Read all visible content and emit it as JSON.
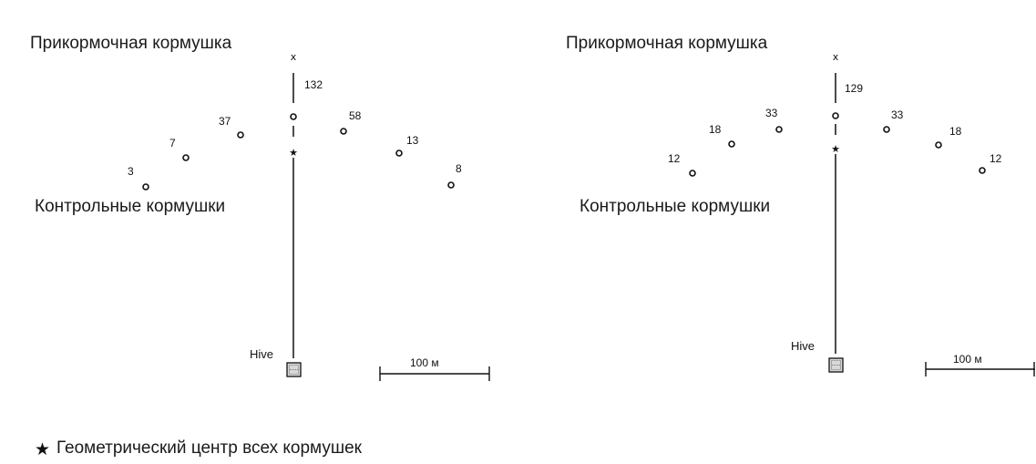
{
  "panels": [
    {
      "title": "Прикормочная кормушка",
      "feeder_mark": "x",
      "feeder_count": "132",
      "center_symbol": "★",
      "controls_label": "Контрольные кормушки",
      "control_counts": [
        "3",
        "7",
        "37",
        "58",
        "13",
        "8"
      ],
      "hive_label": "Hive",
      "scale_label": "100 м"
    },
    {
      "title": "Прикормочная кормушка",
      "feeder_mark": "x",
      "feeder_count": "129",
      "center_symbol": "★",
      "controls_label": "Контрольные кормушки",
      "control_counts": [
        "12",
        "18",
        "33",
        "33",
        "18",
        "12"
      ],
      "hive_label": "Hive",
      "scale_label": "100 м"
    }
  ],
  "legend": {
    "symbol": "★",
    "text": "Геометрический центр всех кормушек"
  }
}
